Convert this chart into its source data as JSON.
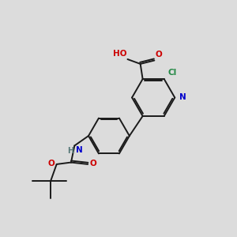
{
  "bg_color": "#dcdcdc",
  "bond_color": "#1a1a1a",
  "atom_colors": {
    "N": "#0000cc",
    "O": "#cc0000",
    "Cl": "#228844",
    "H": "#557777",
    "C": "#1a1a1a"
  },
  "figsize": [
    3.0,
    3.0
  ],
  "dpi": 100
}
